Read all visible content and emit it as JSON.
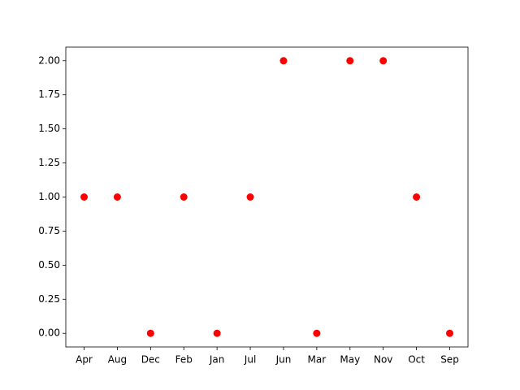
{
  "chart_data": {
    "type": "scatter",
    "categories": [
      "Apr",
      "Aug",
      "Dec",
      "Feb",
      "Jan",
      "Jul",
      "Jun",
      "Mar",
      "May",
      "Nov",
      "Oct",
      "Sep"
    ],
    "values": [
      1,
      1,
      0,
      1,
      0,
      1,
      2,
      0,
      2,
      2,
      1,
      0
    ],
    "color": "#ff0000",
    "ylim": [
      -0.1,
      2.1
    ],
    "yticks": [
      {
        "value": 0,
        "label": "0.00"
      },
      {
        "value": 0.25,
        "label": "0.25"
      },
      {
        "value": 0.5,
        "label": "0.50"
      },
      {
        "value": 0.75,
        "label": "0.75"
      },
      {
        "value": 1,
        "label": "1.00"
      },
      {
        "value": 1.25,
        "label": "1.25"
      },
      {
        "value": 1.5,
        "label": "1.50"
      },
      {
        "value": 1.75,
        "label": "1.75"
      },
      {
        "value": 2,
        "label": "2.00"
      }
    ],
    "grid": false
  }
}
